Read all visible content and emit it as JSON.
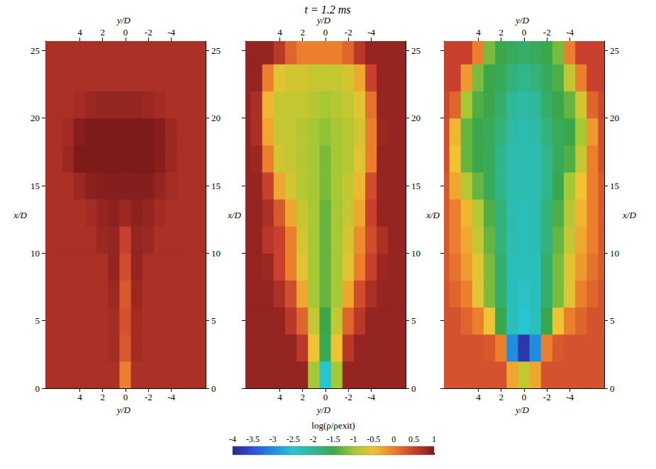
{
  "title": "t = 1.2 ms",
  "colorbar": {
    "label": "log(ρ/ρexit)",
    "range": [
      -4,
      1
    ],
    "ticks": [
      -4,
      -3.5,
      -3,
      -2.5,
      -2,
      -1.5,
      -1,
      -0.5,
      0,
      0.5,
      1
    ]
  },
  "chart_data": [
    {
      "type": "heatmap",
      "xlabel": "y/D",
      "ylabel": "x/D",
      "xlim": [
        7,
        -7
      ],
      "xticks": [
        4,
        2,
        0,
        -2,
        -4
      ],
      "ylim": [
        0,
        25.7
      ],
      "yticks": [
        0,
        5,
        10,
        15,
        20,
        25
      ],
      "x": [
        7,
        6,
        5,
        4,
        3,
        2,
        1,
        0,
        -1,
        -2,
        -3,
        -4,
        -5,
        -6,
        -7
      ],
      "y": [
        1,
        3,
        5,
        7,
        9,
        11,
        13,
        15,
        17,
        19,
        21,
        23,
        25
      ],
      "cells": [
        [
          0.7,
          0.7,
          0.7,
          0.7,
          0.7,
          0.7,
          0.7,
          0,
          0.7,
          0.7,
          0.7,
          0.7,
          0.7,
          0.7,
          0.7
        ],
        [
          0.7,
          0.7,
          0.7,
          0.7,
          0.7,
          0.7,
          0.75,
          0.3,
          0.75,
          0.7,
          0.7,
          0.7,
          0.7,
          0.7,
          0.7
        ],
        [
          0.7,
          0.7,
          0.7,
          0.7,
          0.7,
          0.7,
          0.75,
          0.35,
          0.75,
          0.7,
          0.7,
          0.7,
          0.7,
          0.7,
          0.7
        ],
        [
          0.7,
          0.7,
          0.7,
          0.7,
          0.7,
          0.7,
          0.8,
          0.3,
          0.8,
          0.7,
          0.7,
          0.7,
          0.7,
          0.7,
          0.7
        ],
        [
          0.7,
          0.7,
          0.7,
          0.7,
          0.7,
          0.7,
          0.85,
          0.4,
          0.85,
          0.7,
          0.7,
          0.7,
          0.7,
          0.7,
          0.7
        ],
        [
          0.7,
          0.7,
          0.7,
          0.7,
          0.7,
          0.8,
          0.85,
          0.5,
          0.85,
          0.8,
          0.7,
          0.7,
          0.7,
          0.7,
          0.7
        ],
        [
          0.7,
          0.7,
          0.7,
          0.7,
          0.75,
          0.85,
          0.9,
          0.8,
          0.9,
          0.85,
          0.75,
          0.7,
          0.7,
          0.7,
          0.7
        ],
        [
          0.7,
          0.7,
          0.7,
          0.8,
          0.9,
          0.95,
          0.95,
          0.95,
          0.95,
          0.95,
          0.85,
          0.75,
          0.7,
          0.7,
          0.7
        ],
        [
          0.7,
          0.7,
          0.8,
          1,
          1,
          1,
          1,
          1,
          1,
          1,
          0.95,
          0.8,
          0.7,
          0.7,
          0.7
        ],
        [
          0.7,
          0.7,
          0.75,
          0.95,
          1,
          1,
          1,
          1,
          1,
          1,
          0.95,
          0.8,
          0.7,
          0.7,
          0.7
        ],
        [
          0.7,
          0.7,
          0.7,
          0.75,
          0.8,
          0.85,
          0.85,
          0.85,
          0.85,
          0.8,
          0.75,
          0.7,
          0.7,
          0.7,
          0.7
        ],
        [
          0.7,
          0.7,
          0.7,
          0.7,
          0.7,
          0.7,
          0.7,
          0.7,
          0.7,
          0.7,
          0.7,
          0.7,
          0.7,
          0.7,
          0.7
        ],
        [
          0.7,
          0.7,
          0.7,
          0.7,
          0.7,
          0.7,
          0.7,
          0.7,
          0.7,
          0.7,
          0.7,
          0.7,
          0.7,
          0.7,
          0.7
        ]
      ]
    },
    {
      "type": "heatmap",
      "xlabel": "y/D",
      "ylabel": "x/D",
      "xlim": [
        7,
        -7
      ],
      "xticks": [
        4,
        2,
        0,
        -2,
        -4
      ],
      "ylim": [
        0,
        25.7
      ],
      "yticks": [
        0,
        5,
        10,
        15,
        20,
        25
      ],
      "x": [
        7,
        6,
        5,
        4,
        3,
        2,
        1,
        0,
        -1,
        -2,
        -3,
        -4,
        -5,
        -6,
        -7
      ],
      "y": [
        1,
        3,
        5,
        7,
        9,
        11,
        13,
        15,
        17,
        19,
        21,
        23,
        25
      ],
      "cells": [
        [
          0.85,
          0.85,
          0.85,
          0.85,
          0.85,
          0.85,
          -1,
          -2.5,
          -1,
          0.85,
          0.85,
          0.85,
          0.85,
          0.85,
          0.85
        ],
        [
          0.85,
          0.85,
          0.85,
          0.85,
          0.85,
          0.6,
          -0.5,
          -1.6,
          -0.5,
          0.6,
          0.85,
          0.85,
          0.85,
          0.85,
          0.85
        ],
        [
          0.85,
          0.85,
          0.85,
          0.85,
          0.6,
          0.2,
          -0.8,
          -1.5,
          -0.8,
          0.2,
          0.6,
          0.85,
          0.85,
          0.85,
          0.85
        ],
        [
          0.85,
          0.85,
          0.85,
          0.7,
          0.4,
          -0.3,
          -1,
          -1.3,
          -1,
          -0.3,
          0.4,
          0.7,
          0.85,
          0.85,
          0.85
        ],
        [
          0.85,
          0.85,
          0.8,
          0.5,
          0,
          -0.6,
          -1,
          -1.3,
          -1,
          -0.6,
          0,
          0.5,
          0.8,
          0.85,
          0.85
        ],
        [
          0.85,
          0.85,
          0.6,
          0.5,
          0,
          -0.7,
          -1,
          -1.3,
          -1,
          -0.7,
          -0.1,
          0.4,
          0.7,
          0.85,
          0.85
        ],
        [
          0.85,
          0.85,
          0.7,
          0.3,
          -0.3,
          -0.8,
          -1,
          -1.3,
          -1,
          -0.8,
          -0.3,
          0.5,
          0.85,
          0.85,
          0.85
        ],
        [
          0.85,
          0.85,
          0.5,
          -0.3,
          -0.7,
          -0.9,
          -1,
          -1.2,
          -1,
          -0.8,
          -0.4,
          0.4,
          0.85,
          0.85,
          0.85
        ],
        [
          0.85,
          0.8,
          0,
          -0.7,
          -0.8,
          -0.9,
          -1,
          -1.2,
          -1,
          -0.9,
          -0.6,
          0,
          0.85,
          0.85,
          0.85
        ],
        [
          0.85,
          0.7,
          -0.3,
          -0.8,
          -0.8,
          -0.9,
          -1,
          -1.1,
          -1,
          -0.9,
          -0.7,
          0,
          0.8,
          0.85,
          0.85
        ],
        [
          0.85,
          0.7,
          -0.4,
          -0.8,
          -0.8,
          -0.8,
          -0.9,
          -1,
          -0.9,
          -0.8,
          -0.6,
          0.1,
          0.85,
          0.85,
          0.85
        ],
        [
          0.85,
          0.85,
          0,
          -0.6,
          -0.7,
          -0.7,
          -0.8,
          -0.8,
          -0.8,
          -0.7,
          -0.3,
          0.5,
          0.85,
          0.85,
          0.85
        ],
        [
          0.85,
          0.85,
          0.85,
          0.6,
          0.2,
          0,
          0,
          0,
          0,
          0.2,
          0.6,
          0.85,
          0.85,
          0.85,
          0.85
        ]
      ]
    },
    {
      "type": "heatmap",
      "xlabel": "y/D",
      "ylabel": "x/D",
      "xlim": [
        7,
        -7
      ],
      "xticks": [
        4,
        2,
        0,
        -2,
        -4
      ],
      "ylim": [
        0,
        25.7
      ],
      "yticks": [
        0,
        5,
        10,
        15,
        20,
        25
      ],
      "x": [
        7,
        6,
        5,
        4,
        3,
        2,
        1,
        0,
        -1,
        -2,
        -3,
        -4,
        -5,
        -6,
        -7
      ],
      "y": [
        1,
        3,
        5,
        7,
        9,
        11,
        13,
        15,
        17,
        19,
        21,
        23,
        25
      ],
      "cells": [
        [
          0.35,
          0.35,
          0.35,
          0.35,
          0.35,
          0.35,
          -0.3,
          -0.8,
          -0.3,
          0.35,
          0.35,
          0.35,
          0.35,
          0.35,
          0.35
        ],
        [
          0.35,
          0.35,
          0.35,
          0.35,
          0.3,
          0,
          -3,
          -3.8,
          -3,
          0,
          0.3,
          0.35,
          0.35,
          0.35,
          0.35
        ],
        [
          0.35,
          0.35,
          0.2,
          0,
          -0.5,
          -1.5,
          -2.3,
          -2.5,
          -2.3,
          -1.5,
          -0.5,
          0,
          0.2,
          0.35,
          0.35
        ],
        [
          0.35,
          0.2,
          0,
          -0.6,
          -1.2,
          -1.7,
          -2.3,
          -2.4,
          -2.3,
          -1.7,
          -1.2,
          -0.6,
          0,
          0.2,
          0.35
        ],
        [
          0.3,
          0.1,
          -0.2,
          -0.6,
          -1.2,
          -1.7,
          -2.3,
          -2.3,
          -2.3,
          -1.7,
          -1.2,
          -0.6,
          -0.2,
          0.1,
          0.3
        ],
        [
          0.3,
          0,
          -0.3,
          -0.8,
          -1.3,
          -1.8,
          -2.2,
          -2.3,
          -2.2,
          -1.8,
          -1.3,
          -0.8,
          -0.3,
          0,
          0.3
        ],
        [
          0.3,
          0,
          -0.4,
          -0.9,
          -1.4,
          -1.8,
          -2.2,
          -2.3,
          -2.2,
          -1.8,
          -1.4,
          -0.9,
          -0.4,
          0,
          0.3
        ],
        [
          0.3,
          -0.3,
          -0.9,
          -1.3,
          -1.6,
          -1.9,
          -2.2,
          -2.2,
          -2.2,
          -1.9,
          -1.5,
          -1,
          -0.5,
          0,
          0.3
        ],
        [
          0.4,
          -0.5,
          -1.3,
          -1.5,
          -1.6,
          -1.9,
          -2.2,
          -2.2,
          -2.2,
          -1.9,
          -1.6,
          -1.4,
          -0.8,
          0,
          0.4
        ],
        [
          0.4,
          -0.4,
          -1.3,
          -1.5,
          -1.6,
          -1.8,
          -2.1,
          -2.2,
          -2.1,
          -1.8,
          -1.6,
          -1.5,
          -1,
          -0.2,
          0.4
        ],
        [
          0.45,
          0.2,
          -1,
          -1.4,
          -1.5,
          -1.7,
          -2,
          -2.1,
          -2,
          -1.7,
          -1.5,
          -1.3,
          -0.7,
          0.2,
          0.45
        ],
        [
          0.5,
          0.5,
          -0.2,
          -1.2,
          -1.5,
          -1.6,
          -1.8,
          -1.9,
          -1.8,
          -1.6,
          -1.4,
          -0.8,
          0,
          0.5,
          0.5
        ],
        [
          0.5,
          0.5,
          0.5,
          0,
          -1.2,
          -1.5,
          -1.6,
          -1.7,
          -1.6,
          -1.5,
          -1.2,
          0,
          0.5,
          0.5,
          0.5
        ]
      ]
    }
  ]
}
